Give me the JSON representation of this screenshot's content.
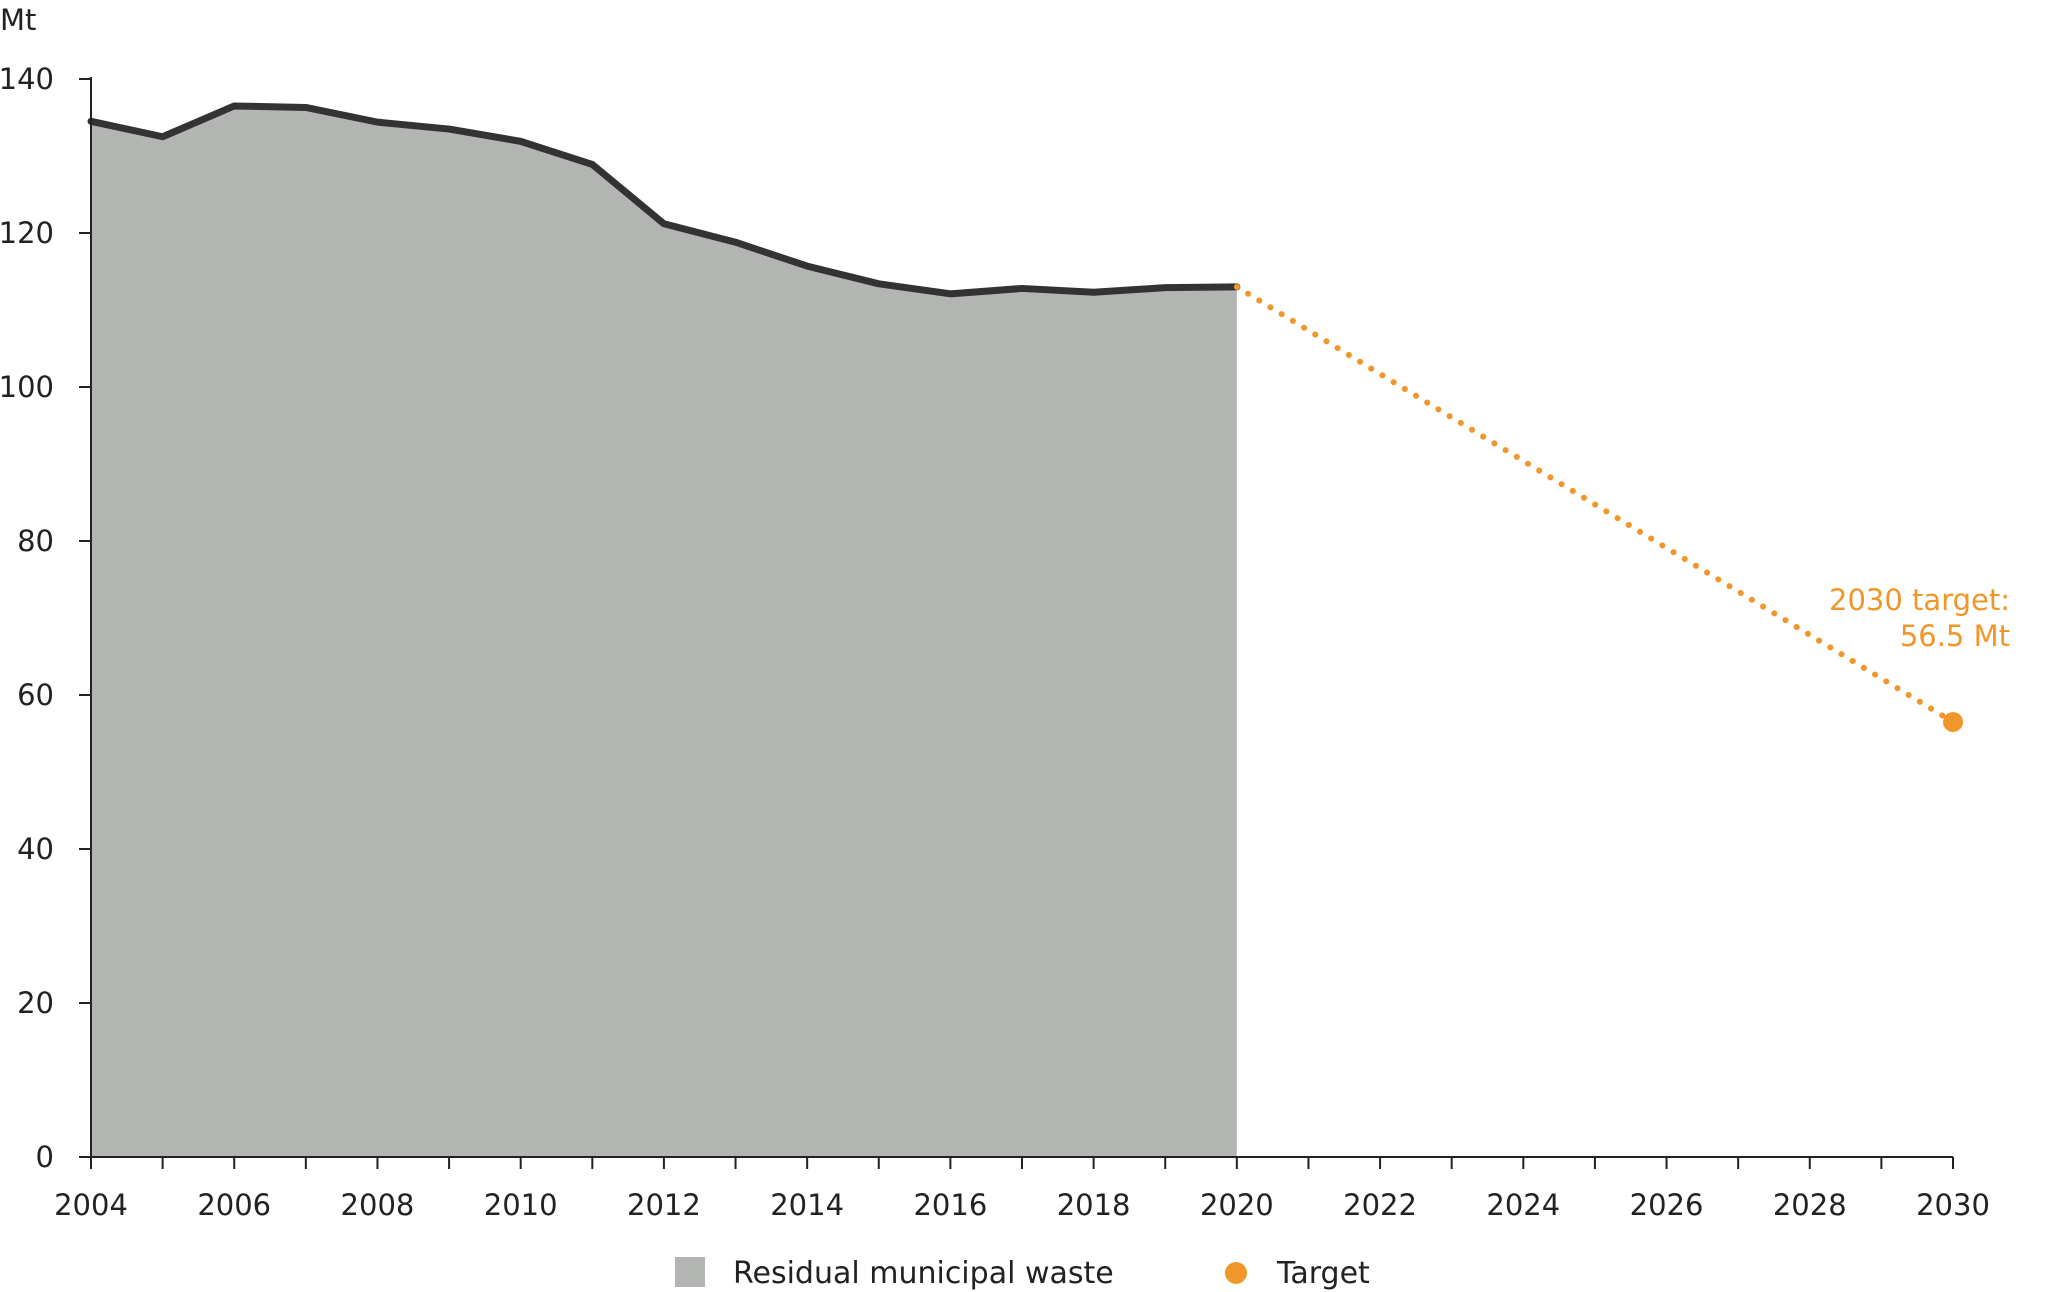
{
  "chart_data": {
    "type": "area",
    "ylabel": "Mt",
    "xlim": [
      2004,
      2030
    ],
    "ylim": [
      0,
      140
    ],
    "y_ticks": [
      0,
      20,
      40,
      60,
      80,
      100,
      120,
      140
    ],
    "x_tick_labels": [
      2004,
      2006,
      2008,
      2010,
      2012,
      2014,
      2016,
      2018,
      2020,
      2022,
      2024,
      2026,
      2028,
      2030
    ],
    "grid": false,
    "legend_placement": "bottom",
    "series": [
      {
        "name": "Residual municipal waste",
        "kind": "area",
        "color": "#b3b5b3",
        "line_color": "#333333",
        "x": [
          2004,
          2005,
          2006,
          2007,
          2008,
          2009,
          2010,
          2011,
          2012,
          2013,
          2014,
          2015,
          2016,
          2017,
          2018,
          2019,
          2020
        ],
        "y": [
          134.5,
          132.5,
          136.5,
          136.3,
          134.4,
          133.5,
          131.9,
          128.9,
          121.2,
          118.8,
          115.7,
          113.4,
          112.1,
          112.8,
          112.3,
          112.9,
          113.0
        ]
      },
      {
        "name": "Target",
        "kind": "point",
        "color": "#f0962a",
        "x": [
          2030
        ],
        "y": [
          56.5
        ]
      }
    ],
    "trajectory": {
      "style": "dotted",
      "color": "#f0962a",
      "from": [
        2020,
        113.0
      ],
      "to": [
        2030,
        56.5
      ]
    },
    "annotations": [
      {
        "lines": [
          "2030 target:",
          "56.5 Mt"
        ],
        "x": 2030,
        "y": 56.5,
        "color": "#f0962a"
      }
    ]
  }
}
